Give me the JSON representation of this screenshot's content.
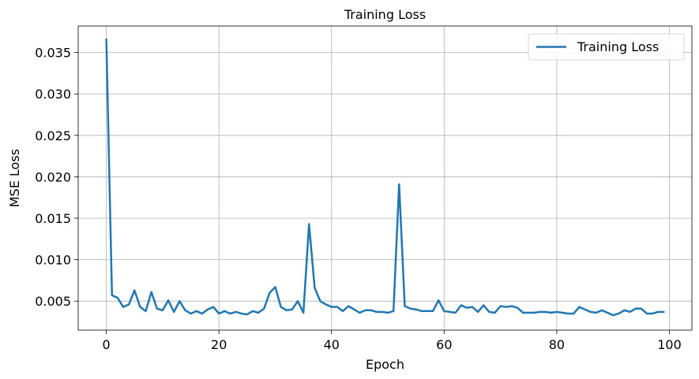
{
  "chart_data": {
    "type": "line",
    "title": "Training Loss",
    "xlabel": "Epoch",
    "ylabel": "MSE Loss",
    "xlim": [
      -5,
      104
    ],
    "ylim": [
      0.0015,
      0.0382
    ],
    "xticks": [
      0,
      20,
      40,
      60,
      80,
      100
    ],
    "xtick_labels": [
      "0",
      "20",
      "40",
      "60",
      "80",
      "100"
    ],
    "yticks": [
      0.005,
      0.01,
      0.015,
      0.02,
      0.025,
      0.03,
      0.035
    ],
    "ytick_labels": [
      "0.005",
      "0.010",
      "0.015",
      "0.020",
      "0.025",
      "0.030",
      "0.035"
    ],
    "grid": true,
    "legend": {
      "position": "top-right"
    },
    "series": [
      {
        "name": "Training Loss",
        "color": "#1f77b4",
        "x": [
          0,
          1,
          2,
          3,
          4,
          5,
          6,
          7,
          8,
          9,
          10,
          11,
          12,
          13,
          14,
          15,
          16,
          17,
          18,
          19,
          20,
          21,
          22,
          23,
          24,
          25,
          26,
          27,
          28,
          29,
          30,
          31,
          32,
          33,
          34,
          35,
          36,
          37,
          38,
          39,
          40,
          41,
          42,
          43,
          44,
          45,
          46,
          47,
          48,
          49,
          50,
          51,
          52,
          53,
          54,
          55,
          56,
          57,
          58,
          59,
          60,
          61,
          62,
          63,
          64,
          65,
          66,
          67,
          68,
          69,
          70,
          71,
          72,
          73,
          74,
          75,
          76,
          77,
          78,
          79,
          80,
          81,
          82,
          83,
          84,
          85,
          86,
          87,
          88,
          89,
          90,
          91,
          92,
          93,
          94,
          95,
          96,
          97,
          98,
          99
        ],
        "values": [
          0.0366,
          0.0057,
          0.0054,
          0.0043,
          0.0046,
          0.0063,
          0.0043,
          0.0038,
          0.0061,
          0.0041,
          0.0039,
          0.0051,
          0.0037,
          0.005,
          0.0039,
          0.0035,
          0.0038,
          0.0035,
          0.004,
          0.0043,
          0.0035,
          0.0038,
          0.0035,
          0.0037,
          0.0035,
          0.0034,
          0.0038,
          0.0036,
          0.0041,
          0.006,
          0.0067,
          0.0043,
          0.0039,
          0.004,
          0.005,
          0.0036,
          0.0143,
          0.0066,
          0.005,
          0.0046,
          0.0043,
          0.0043,
          0.0038,
          0.0044,
          0.004,
          0.0036,
          0.0039,
          0.0039,
          0.0037,
          0.0037,
          0.0036,
          0.0038,
          0.0191,
          0.0044,
          0.0041,
          0.004,
          0.0038,
          0.0038,
          0.0038,
          0.0051,
          0.0038,
          0.0037,
          0.0036,
          0.0045,
          0.0042,
          0.0043,
          0.0037,
          0.0045,
          0.0037,
          0.0036,
          0.0044,
          0.0043,
          0.0044,
          0.0042,
          0.0036,
          0.0036,
          0.0036,
          0.0037,
          0.0037,
          0.0036,
          0.0037,
          0.0036,
          0.0035,
          0.0035,
          0.0043,
          0.004,
          0.0037,
          0.0036,
          0.0039,
          0.0036,
          0.0033,
          0.0035,
          0.0039,
          0.0037,
          0.0041,
          0.0041,
          0.0035,
          0.0035,
          0.0037,
          0.0037
        ]
      }
    ]
  }
}
